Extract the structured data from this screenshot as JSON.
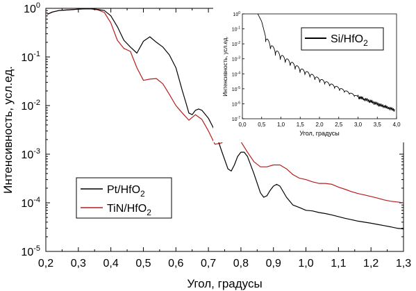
{
  "chart_data": [
    {
      "type": "line",
      "title": "",
      "xlabel": "Угол, градусы",
      "ylabel": "Интенсивность, усл.ед.",
      "xlim": [
        0.2,
        1.3
      ],
      "ylim": [
        1e-05,
        1
      ],
      "yscale": "log",
      "grid": false,
      "legend_position": "bottom-left",
      "x_ticks": [
        "0,2",
        "0,3",
        "0,4",
        "0,5",
        "0,6",
        "0,7",
        "0,8",
        "0,9",
        "1,0",
        "1,1",
        "1,2",
        "1,3"
      ],
      "y_ticks": [
        {
          "base": "10",
          "exp": "0"
        },
        {
          "base": "10",
          "exp": "-1"
        },
        {
          "base": "10",
          "exp": "-2"
        },
        {
          "base": "10",
          "exp": "-3"
        },
        {
          "base": "10",
          "exp": "-4"
        },
        {
          "base": "10",
          "exp": "-5"
        }
      ],
      "series": [
        {
          "name": "Pt/HfO2",
          "legend_main": "Pt/HfO",
          "legend_sub": "2",
          "color": "#000000",
          "x": [
            0.205,
            0.22,
            0.24,
            0.26,
            0.28,
            0.3,
            0.32,
            0.34,
            0.36,
            0.38,
            0.4,
            0.42,
            0.44,
            0.46,
            0.48,
            0.5,
            0.52,
            0.54,
            0.56,
            0.58,
            0.6,
            0.62,
            0.63,
            0.64,
            0.65,
            0.66,
            0.67,
            0.68,
            0.7,
            0.72,
            0.74,
            0.76,
            0.77,
            0.78,
            0.79,
            0.8,
            0.81,
            0.82,
            0.84,
            0.86,
            0.87,
            0.88,
            0.89,
            0.9,
            0.91,
            0.92,
            0.94,
            0.96,
            0.98,
            1.0,
            1.02,
            1.04,
            1.06,
            1.08,
            1.1,
            1.12,
            1.14,
            1.16,
            1.18,
            1.2,
            1.22,
            1.24,
            1.26,
            1.28,
            1.3
          ],
          "y": [
            0.76,
            0.84,
            0.9,
            0.92,
            0.94,
            0.96,
            0.98,
            0.98,
            0.95,
            0.9,
            0.7,
            0.42,
            0.22,
            0.16,
            0.12,
            0.21,
            0.26,
            0.2,
            0.16,
            0.11,
            0.06,
            0.02,
            0.012,
            0.007,
            0.0065,
            0.008,
            0.0085,
            0.008,
            0.0055,
            0.003,
            0.0012,
            0.0005,
            0.00045,
            0.0006,
            0.0009,
            0.0011,
            0.0011,
            0.0009,
            0.0004,
            0.00016,
            0.00013,
            0.00014,
            0.00018,
            0.00022,
            0.00024,
            0.00022,
            0.00013,
            9e-05,
            8e-05,
            7e-05,
            6.8e-05,
            6.3e-05,
            6e-05,
            5.6e-05,
            5.2e-05,
            4.8e-05,
            4.5e-05,
            4.2e-05,
            4e-05,
            3.8e-05,
            3.6e-05,
            3.4e-05,
            3.2e-05,
            3e-05,
            2.9e-05
          ]
        },
        {
          "name": "TiN/HfO2",
          "legend_main": "TiN/HfO",
          "legend_sub": "2",
          "color": "#b71c1c",
          "x": [
            0.205,
            0.22,
            0.24,
            0.26,
            0.28,
            0.3,
            0.32,
            0.34,
            0.36,
            0.38,
            0.4,
            0.42,
            0.44,
            0.46,
            0.48,
            0.5,
            0.52,
            0.54,
            0.56,
            0.58,
            0.6,
            0.62,
            0.64,
            0.66,
            0.68,
            0.7,
            0.72,
            0.74,
            0.76,
            0.78,
            0.8,
            0.82,
            0.84,
            0.86,
            0.88,
            0.9,
            0.92,
            0.94,
            0.96,
            0.98,
            1.0,
            1.02,
            1.04,
            1.06,
            1.08,
            1.1,
            1.12,
            1.14,
            1.16,
            1.18,
            1.2,
            1.22,
            1.24,
            1.26,
            1.28,
            1.3
          ],
          "y": [
            0.75,
            0.84,
            0.9,
            0.92,
            0.94,
            0.96,
            0.97,
            0.97,
            0.93,
            0.82,
            0.5,
            0.22,
            0.15,
            0.13,
            0.06,
            0.033,
            0.035,
            0.036,
            0.028,
            0.017,
            0.01,
            0.007,
            0.005,
            0.0065,
            0.0052,
            0.003,
            0.0016,
            0.0017,
            0.0021,
            0.0022,
            0.0018,
            0.0011,
            0.0007,
            0.00055,
            0.00055,
            0.0006,
            0.0006,
            0.0005,
            0.00038,
            0.00032,
            0.0003,
            0.00027,
            0.00025,
            0.00025,
            0.00024,
            0.00021,
            0.00019,
            0.00017,
            0.000155,
            0.000145,
            0.000135,
            0.000125,
            0.000115,
            0.000108,
            0.000104,
            0.0001
          ]
        }
      ]
    },
    {
      "type": "line",
      "title": "",
      "xlabel": "Угол, градусы",
      "ylabel": "Интенсивность, усл.ед.",
      "xlim": [
        0.0,
        4.0
      ],
      "ylim": [
        1e-07,
        1
      ],
      "yscale": "log",
      "grid": false,
      "legend_position": "top-right",
      "x_ticks": [
        "0,0",
        "0,5",
        "1,0",
        "1,5",
        "2,0",
        "2,5",
        "3,0",
        "3,5",
        "4,0"
      ],
      "y_ticks": [
        {
          "base": "10",
          "exp": "0"
        },
        {
          "base": "10",
          "exp": "-1"
        },
        {
          "base": "10",
          "exp": "-2"
        },
        {
          "base": "10",
          "exp": "-3"
        },
        {
          "base": "10",
          "exp": "-4"
        },
        {
          "base": "10",
          "exp": "-5"
        },
        {
          "base": "10",
          "exp": "-6"
        },
        {
          "base": "10",
          "exp": "-7"
        }
      ],
      "series": [
        {
          "name": "Si/HfO2",
          "legend_main": "Si/HfO",
          "legend_sub": "2",
          "color": "#000000",
          "x_start": 0.4,
          "x_end": 3.95,
          "envelope_log10_points": [
            [
              0.4,
              0
            ],
            [
              0.5,
              -0.5
            ],
            [
              0.6,
              -1.5
            ],
            [
              0.8,
              -2.2
            ],
            [
              1.0,
              -2.7
            ],
            [
              1.5,
              -3.6
            ],
            [
              2.0,
              -4.3
            ],
            [
              2.5,
              -4.9
            ],
            [
              3.0,
              -5.5
            ],
            [
              3.5,
              -6.0
            ],
            [
              3.95,
              -6.4
            ]
          ],
          "oscillation_period": 0.128,
          "oscillation_depth_decades": 0.6
        }
      ]
    }
  ]
}
